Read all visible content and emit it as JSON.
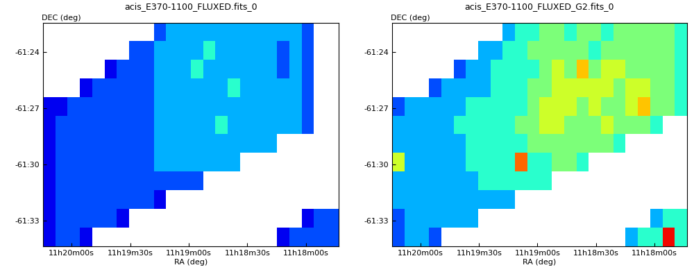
{
  "chart_data": [
    {
      "type": "heatmap",
      "title": "acis_E370-1100_FLUXED.fits_0",
      "xlabel": "RA (deg)",
      "ylabel": "DEC (deg)",
      "xlim": [
        170.061,
        169.43
      ],
      "ylim": [
        -61.5728,
        -61.374
      ],
      "xticks": [
        {
          "value": 170.0,
          "label": "11h20m00s"
        },
        {
          "value": 169.875,
          "label": "11h19m30s"
        },
        {
          "value": 169.75,
          "label": "11h19m00s"
        },
        {
          "value": 169.625,
          "label": "11h18m30s"
        },
        {
          "value": 169.5,
          "label": "11h18m00s"
        }
      ],
      "yticks": [
        {
          "value": -61.4,
          "label": "-61:24"
        },
        {
          "value": -61.45,
          "label": "-61:27"
        },
        {
          "value": -61.5,
          "label": "-61:30"
        },
        {
          "value": -61.55,
          "label": "-61:33"
        }
      ],
      "color_range": [
        0,
        10
      ],
      "cells": [
        [
          null,
          null,
          null,
          null,
          null,
          null,
          null,
          null,
          null,
          2,
          3,
          3,
          3,
          3,
          3,
          3,
          3,
          3,
          3,
          3,
          3,
          2,
          null,
          null
        ],
        [
          null,
          null,
          null,
          null,
          null,
          null,
          null,
          2,
          2,
          3,
          3,
          3,
          3,
          4,
          3,
          3,
          3,
          3,
          3,
          2,
          3,
          2,
          null,
          null
        ],
        [
          null,
          null,
          null,
          null,
          null,
          1,
          2,
          2,
          2,
          3,
          3,
          3,
          4,
          3,
          3,
          3,
          3,
          3,
          3,
          2,
          3,
          2,
          null,
          null
        ],
        [
          null,
          null,
          null,
          1,
          2,
          2,
          2,
          2,
          2,
          3,
          3,
          3,
          3,
          3,
          3,
          4,
          3,
          3,
          3,
          3,
          3,
          2,
          null,
          null
        ],
        [
          1,
          1,
          2,
          2,
          2,
          2,
          2,
          2,
          2,
          3,
          3,
          3,
          3,
          3,
          3,
          3,
          3,
          3,
          3,
          3,
          3,
          2,
          null,
          null
        ],
        [
          1,
          2,
          2,
          2,
          2,
          2,
          2,
          2,
          2,
          3,
          3,
          3,
          3,
          3,
          4,
          3,
          3,
          3,
          3,
          3,
          3,
          2,
          null,
          null
        ],
        [
          1,
          2,
          2,
          2,
          2,
          2,
          2,
          2,
          2,
          3,
          3,
          3,
          3,
          3,
          3,
          3,
          3,
          3,
          3,
          null,
          null,
          null,
          null,
          null
        ],
        [
          1,
          2,
          2,
          2,
          2,
          2,
          2,
          2,
          2,
          3,
          3,
          3,
          3,
          3,
          3,
          3,
          null,
          null,
          null,
          null,
          null,
          null,
          null,
          null
        ],
        [
          1,
          2,
          2,
          2,
          2,
          2,
          2,
          2,
          2,
          2,
          2,
          2,
          2,
          null,
          null,
          null,
          null,
          null,
          null,
          null,
          null,
          null,
          null,
          null
        ],
        [
          1,
          2,
          2,
          2,
          2,
          2,
          2,
          2,
          2,
          1,
          null,
          null,
          null,
          null,
          null,
          null,
          null,
          null,
          null,
          null,
          null,
          null,
          null,
          null
        ],
        [
          1,
          2,
          2,
          2,
          2,
          2,
          1,
          null,
          null,
          null,
          null,
          null,
          null,
          null,
          null,
          null,
          null,
          null,
          null,
          null,
          null,
          1,
          2,
          2
        ],
        [
          1,
          2,
          2,
          1,
          null,
          null,
          null,
          null,
          null,
          null,
          null,
          null,
          null,
          null,
          null,
          null,
          null,
          null,
          null,
          1,
          2,
          2,
          2,
          2
        ]
      ]
    },
    {
      "type": "heatmap",
      "title": "acis_E370-1100_FLUXED_G2.fits_0",
      "xlabel": "RA (deg)",
      "ylabel": "DEC (deg)",
      "xlim": [
        170.061,
        169.43
      ],
      "ylim": [
        -61.5728,
        -61.374
      ],
      "xticks": [
        {
          "value": 170.0,
          "label": "11h20m00s"
        },
        {
          "value": 169.875,
          "label": "11h19m30s"
        },
        {
          "value": 169.75,
          "label": "11h19m00s"
        },
        {
          "value": 169.625,
          "label": "11h18m30s"
        },
        {
          "value": 169.5,
          "label": "11h18m00s"
        }
      ],
      "yticks": [
        {
          "value": -61.4,
          "label": "-61:24"
        },
        {
          "value": -61.45,
          "label": "-61:27"
        },
        {
          "value": -61.5,
          "label": "-61:30"
        },
        {
          "value": -61.55,
          "label": "-61:33"
        }
      ],
      "color_range": [
        0,
        10
      ],
      "cells": [
        [
          null,
          null,
          null,
          null,
          null,
          null,
          null,
          null,
          null,
          3,
          4,
          4,
          5,
          5,
          4,
          5,
          5,
          4,
          5,
          5,
          5,
          5,
          5,
          4
        ],
        [
          null,
          null,
          null,
          null,
          null,
          null,
          null,
          3,
          3,
          4,
          4,
          5,
          5,
          5,
          5,
          5,
          4,
          5,
          5,
          5,
          5,
          5,
          5,
          4
        ],
        [
          null,
          null,
          null,
          null,
          null,
          2,
          3,
          3,
          4,
          4,
          4,
          4,
          5,
          6,
          5,
          7,
          5,
          6,
          6,
          5,
          5,
          5,
          5,
          4
        ],
        [
          null,
          null,
          null,
          2,
          3,
          3,
          3,
          3,
          4,
          4,
          4,
          5,
          5,
          6,
          6,
          6,
          6,
          6,
          5,
          6,
          6,
          5,
          5,
          4
        ],
        [
          2,
          3,
          3,
          3,
          3,
          3,
          4,
          4,
          4,
          4,
          4,
          5,
          6,
          6,
          6,
          5,
          6,
          5,
          5,
          6,
          7,
          5,
          5,
          4
        ],
        [
          3,
          3,
          3,
          3,
          3,
          4,
          4,
          4,
          4,
          4,
          5,
          5,
          6,
          6,
          5,
          5,
          5,
          6,
          5,
          5,
          5,
          4,
          null,
          null
        ],
        [
          3,
          3,
          3,
          3,
          3,
          3,
          4,
          4,
          4,
          4,
          4,
          5,
          5,
          5,
          5,
          5,
          5,
          5,
          4,
          null,
          null,
          null,
          null,
          null
        ],
        [
          6,
          3,
          3,
          3,
          3,
          3,
          4,
          4,
          4,
          4,
          8,
          4,
          4,
          5,
          5,
          4,
          null,
          null,
          null,
          null,
          null,
          null,
          null,
          null
        ],
        [
          3,
          3,
          3,
          3,
          3,
          3,
          3,
          4,
          4,
          4,
          4,
          4,
          4,
          null,
          null,
          null,
          null,
          null,
          null,
          null,
          null,
          null,
          null,
          null
        ],
        [
          3,
          3,
          3,
          3,
          3,
          3,
          3,
          3,
          3,
          3,
          null,
          null,
          null,
          null,
          null,
          null,
          null,
          null,
          null,
          null,
          null,
          null,
          null,
          null
        ],
        [
          2,
          3,
          3,
          3,
          3,
          3,
          3,
          null,
          null,
          null,
          null,
          null,
          null,
          null,
          null,
          null,
          null,
          null,
          null,
          null,
          null,
          3,
          4,
          4
        ],
        [
          2,
          3,
          3,
          2,
          null,
          null,
          null,
          null,
          null,
          null,
          null,
          null,
          null,
          null,
          null,
          null,
          null,
          null,
          null,
          3,
          4,
          4,
          9,
          4
        ]
      ]
    }
  ]
}
